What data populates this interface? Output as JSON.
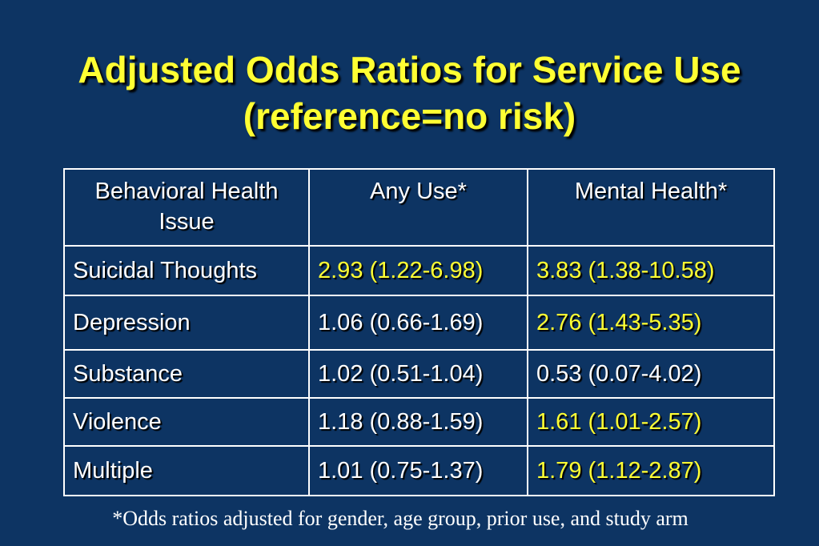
{
  "slide": {
    "title_line1": "Adjusted Odds Ratios for Service Use",
    "title_line2": "(reference=no risk)",
    "footnote": "*Odds ratios adjusted for gender, age group, prior use, and study arm"
  },
  "colors": {
    "background": "#0d3463",
    "title": "#ffff33",
    "highlight": "#ffff33",
    "text": "#ffffff"
  },
  "table": {
    "headers": [
      "Behavioral Health Issue",
      "Any Use*",
      "Mental Health*"
    ],
    "rows": [
      {
        "issue": "Suicidal Thoughts",
        "any_use": "2.93 (1.22-6.98)",
        "mental_health": "3.83 (1.38-10.58)",
        "any_use_highlight": true,
        "mental_health_highlight": true
      },
      {
        "issue": "Depression",
        "any_use": "1.06 (0.66-1.69)",
        "mental_health": "2.76 (1.43-5.35)",
        "any_use_highlight": false,
        "mental_health_highlight": true
      },
      {
        "issue": "Substance",
        "any_use": "1.02 (0.51-1.04)",
        "mental_health": "0.53 (0.07-4.02)",
        "any_use_highlight": false,
        "mental_health_highlight": false
      },
      {
        "issue": "Violence",
        "any_use": "1.18 (0.88-1.59)",
        "mental_health": "1.61 (1.01-2.57)",
        "any_use_highlight": false,
        "mental_health_highlight": true
      },
      {
        "issue": "Multiple",
        "any_use": "1.01 (0.75-1.37)",
        "mental_health": "1.79 (1.12-2.87)",
        "any_use_highlight": false,
        "mental_health_highlight": true
      }
    ]
  }
}
